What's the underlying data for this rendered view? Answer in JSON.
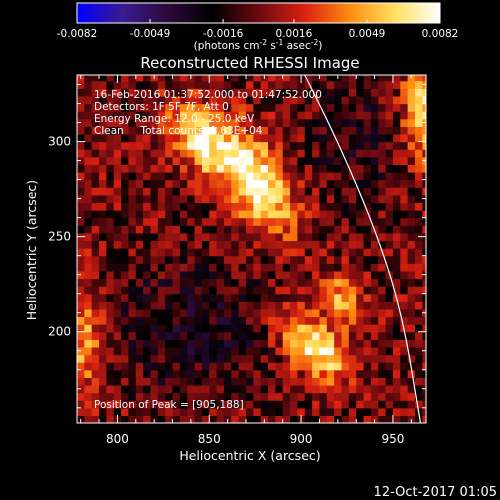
{
  "chart_data": {
    "type": "heatmap",
    "title": "Reconstructed RHESSI Image",
    "xlabel": "Heliocentric X (arcsec)",
    "ylabel": "Heliocentric Y (arcsec)",
    "xlim": [
      778,
      968
    ],
    "ylim": [
      152,
      335
    ],
    "x_ticks": [
      800,
      850,
      900,
      950
    ],
    "y_ticks": [
      200,
      250,
      300
    ],
    "colorbar": {
      "range": [
        -0.0082,
        0.0082
      ],
      "tick_labels": [
        "-0.0082",
        "-0.0049",
        "-0.0016",
        "0.0016",
        "0.0049",
        "0.0082"
      ],
      "tick_values": [
        -0.0082,
        -0.0049,
        -0.0016,
        0.0016,
        0.0049,
        0.0082
      ],
      "unit_prefix": "(photons cm",
      "unit_sup1": "-2",
      "unit_mid1": " s",
      "unit_sup2": "-1",
      "unit_mid2": " asec",
      "unit_sup3": "-2",
      "unit_suffix": ")",
      "colormap": [
        "#0000ff",
        "#3a1a8f",
        "#2b0a3a",
        "#000000",
        "#6a0a10",
        "#d82010",
        "#ff8a10",
        "#ffe060",
        "#ffffff"
      ]
    },
    "annotations": [
      "16-Feb-2016 01:37:52.000 to 01:47:52.000",
      "Detectors: 1F 5F 7F, Att 0",
      "Energy Range: 12.0 - 25.0 keV",
      "Clean     Total counts: 1.63E+04"
    ],
    "peak_label": "Position of Peak = [905,188]",
    "peak": [
      905,
      188
    ],
    "sources": [
      {
        "x": 873,
        "y": 278,
        "sx": 22,
        "sy": 11,
        "angle_deg": -58,
        "amp": 0.0082
      },
      {
        "x": 842,
        "y": 300,
        "sx": 14,
        "sy": 9,
        "angle_deg": -55,
        "amp": 0.0065
      },
      {
        "x": 905,
        "y": 190,
        "sx": 16,
        "sy": 9,
        "angle_deg": -40,
        "amp": 0.0075
      },
      {
        "x": 920,
        "y": 215,
        "sx": 10,
        "sy": 7,
        "angle_deg": -50,
        "amp": 0.005
      },
      {
        "x": 965,
        "y": 315,
        "sx": 9,
        "sy": 20,
        "angle_deg": 0,
        "amp": 0.006
      },
      {
        "x": 780,
        "y": 195,
        "sx": 7,
        "sy": 20,
        "angle_deg": 0,
        "amp": 0.005
      }
    ],
    "limb_curve": [
      [
        902,
        335
      ],
      [
        920,
        300
      ],
      [
        940,
        255
      ],
      [
        955,
        210
      ],
      [
        965,
        152
      ]
    ],
    "pixel_size_arcsec": 4,
    "grid": false
  },
  "footer": {
    "date": "12-Oct-2017 01:05"
  }
}
